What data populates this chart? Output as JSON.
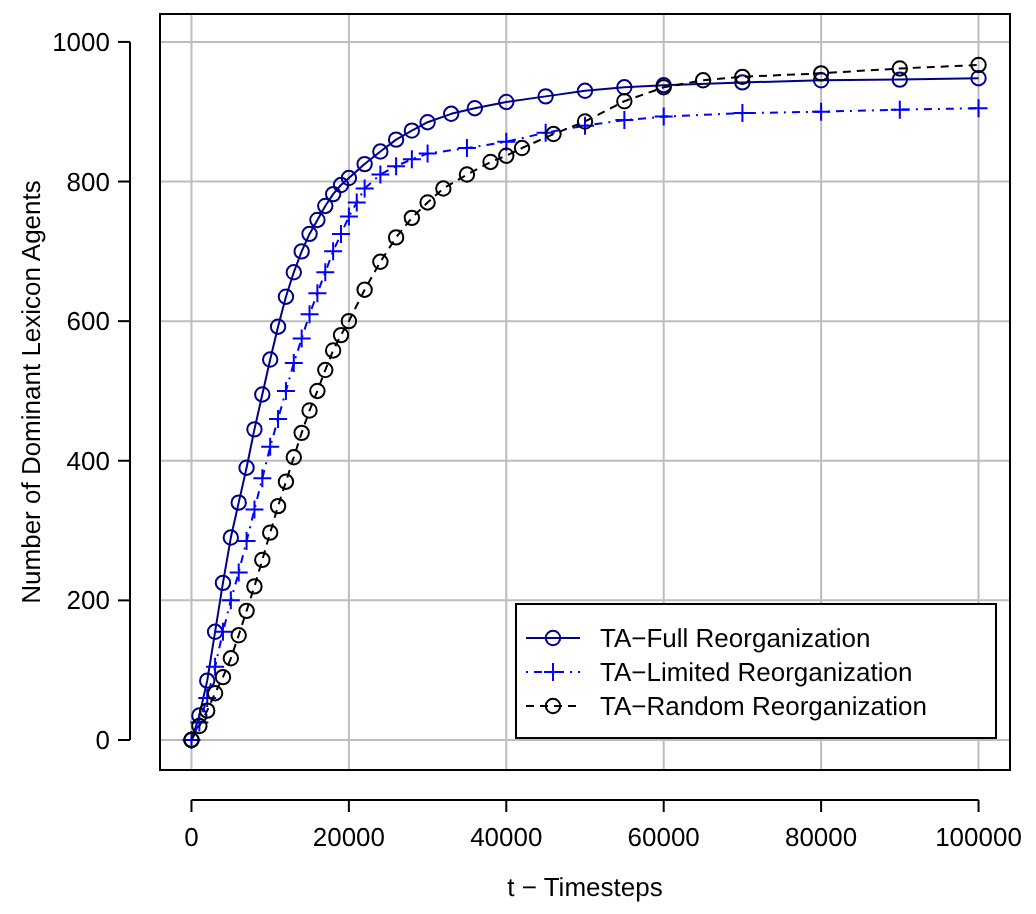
{
  "chart_data": {
    "type": "line",
    "xlabel": "t − Timesteps",
    "ylabel": "Number of Dominant Lexicon Agents",
    "xlim": [
      -4000,
      104000
    ],
    "ylim": [
      -43,
      1040
    ],
    "xticks": [
      0,
      20000,
      40000,
      60000,
      80000,
      100000
    ],
    "yticks": [
      0,
      200,
      400,
      600,
      800,
      1000
    ],
    "grid": true,
    "legend": "bottom right",
    "series": [
      {
        "name": "TA−Full Reorganization",
        "color": "#00008b",
        "marker": "circle",
        "line_style": "solid",
        "x": [
          0,
          1000,
          2000,
          3000,
          4000,
          5000,
          6000,
          7000,
          8000,
          9000,
          10000,
          11000,
          12000,
          13000,
          14000,
          15000,
          16000,
          17000,
          18000,
          19000,
          20000,
          22000,
          24000,
          26000,
          28000,
          30000,
          33000,
          36000,
          40000,
          45000,
          50000,
          55000,
          60000,
          70000,
          80000,
          90000,
          100000
        ],
        "values": [
          0,
          35,
          85,
          155,
          225,
          290,
          340,
          390,
          445,
          495,
          545,
          592,
          635,
          670,
          700,
          725,
          745,
          765,
          782,
          795,
          805,
          825,
          843,
          860,
          873,
          885,
          897,
          905,
          914,
          922,
          930,
          935,
          938,
          942,
          945,
          946,
          948
        ]
      },
      {
        "name": "TA−Limited Reorganization",
        "color": "#0000ff",
        "marker": "cross",
        "line_style": "dotted",
        "x": [
          0,
          1000,
          2000,
          3000,
          4000,
          5000,
          6000,
          7000,
          8000,
          9000,
          10000,
          11000,
          12000,
          13000,
          14000,
          15000,
          16000,
          17000,
          18000,
          19000,
          20000,
          21000,
          22000,
          24000,
          26000,
          28000,
          30000,
          35000,
          40000,
          45000,
          50000,
          55000,
          60000,
          70000,
          80000,
          90000,
          100000
        ],
        "values": [
          0,
          25,
          60,
          105,
          155,
          200,
          240,
          285,
          330,
          375,
          420,
          460,
          500,
          540,
          575,
          610,
          640,
          670,
          700,
          725,
          750,
          770,
          790,
          810,
          822,
          832,
          840,
          848,
          857,
          870,
          880,
          888,
          893,
          898,
          900,
          903,
          905
        ]
      },
      {
        "name": "TA−Random Reorganization",
        "color": "#000000",
        "marker": "circle",
        "line_style": "dashed",
        "x": [
          0,
          1000,
          2000,
          3000,
          4000,
          5000,
          6000,
          7000,
          8000,
          9000,
          10000,
          11000,
          12000,
          13000,
          14000,
          15000,
          16000,
          17000,
          18000,
          19000,
          20000,
          22000,
          24000,
          26000,
          28000,
          30000,
          32000,
          35000,
          38000,
          40000,
          42000,
          46000,
          50000,
          55000,
          60000,
          65000,
          70000,
          80000,
          90000,
          100000
        ],
        "values": [
          0,
          20,
          42,
          67,
          90,
          117,
          150,
          185,
          220,
          258,
          297,
          335,
          370,
          405,
          440,
          472,
          500,
          530,
          558,
          580,
          600,
          645,
          685,
          720,
          748,
          770,
          790,
          810,
          828,
          837,
          848,
          868,
          886,
          915,
          935,
          945,
          950,
          955,
          962,
          967
        ]
      }
    ]
  }
}
